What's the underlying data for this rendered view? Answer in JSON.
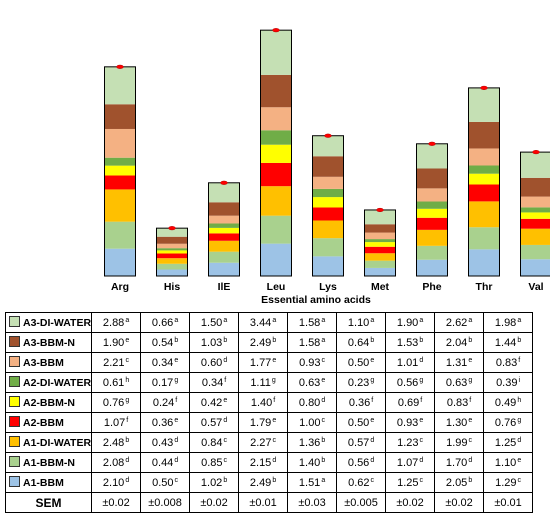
{
  "chart_data": {
    "type": "stacked-bar",
    "categories": [
      "Arg",
      "His",
      "IlE",
      "Leu",
      "Lys",
      "Met",
      "Phe",
      "Thr",
      "Val"
    ],
    "xlabel": "Essential amino acids",
    "series": [
      {
        "name": "A1-BBM",
        "color": "#9dc3e6",
        "values": [
          2.1,
          0.5,
          1.02,
          2.49,
          1.51,
          0.62,
          1.25,
          2.05,
          1.29
        ],
        "letters": [
          "d",
          "c",
          "b",
          "b",
          "a",
          "c",
          "c",
          "b",
          "c"
        ]
      },
      {
        "name": "A1-BBM-N",
        "color": "#a9d18e",
        "values": [
          2.08,
          0.44,
          0.85,
          2.15,
          1.4,
          0.56,
          1.07,
          1.7,
          1.1
        ],
        "letters": [
          "d",
          "d",
          "c",
          "d",
          "b",
          "d",
          "d",
          "d",
          "e"
        ]
      },
      {
        "name": "A1-DI-WATER",
        "color": "#ffc000",
        "values": [
          2.48,
          0.43,
          0.84,
          2.27,
          1.36,
          0.57,
          1.23,
          1.99,
          1.25
        ],
        "letters": [
          "b",
          "d",
          "c",
          "c",
          "b",
          "d",
          "c",
          "c",
          "d"
        ]
      },
      {
        "name": "A2-BBM",
        "color": "#ff0000",
        "values": [
          1.07,
          0.36,
          0.57,
          1.79,
          1.0,
          0.5,
          0.93,
          1.3,
          0.76
        ],
        "letters": [
          "f",
          "e",
          "d",
          "e",
          "c",
          "e",
          "e",
          "e",
          "g"
        ]
      },
      {
        "name": "A2-BBM-N",
        "color": "#ffff00",
        "values": [
          0.76,
          0.24,
          0.42,
          1.4,
          0.8,
          0.36,
          0.69,
          0.83,
          0.49
        ],
        "letters": [
          "g",
          "f",
          "e",
          "f",
          "d",
          "f",
          "f",
          "f",
          "h"
        ]
      },
      {
        "name": "A2-DI-WATER",
        "color": "#70ad47",
        "values": [
          0.61,
          0.17,
          0.34,
          1.11,
          0.63,
          0.23,
          0.56,
          0.63,
          0.39
        ],
        "letters": [
          "h",
          "g",
          "f",
          "g",
          "e",
          "g",
          "g",
          "g",
          "i"
        ]
      },
      {
        "name": "A3-BBM",
        "color": "#f4b183",
        "values": [
          2.21,
          0.34,
          0.6,
          1.77,
          0.93,
          0.5,
          1.01,
          1.31,
          0.83
        ],
        "letters": [
          "c",
          "e",
          "d",
          "e",
          "c",
          "e",
          "d",
          "e",
          "f"
        ]
      },
      {
        "name": "A3-BBM-N",
        "color": "#a0522d",
        "values": [
          1.9,
          0.54,
          1.03,
          2.49,
          1.58,
          0.64,
          1.53,
          2.04,
          1.44
        ],
        "letters": [
          "e",
          "b",
          "b",
          "b",
          "a",
          "b",
          "b",
          "b",
          "b"
        ]
      },
      {
        "name": "A3-DI-WATER",
        "color": "#c5e0b4",
        "values": [
          2.88,
          0.66,
          1.5,
          3.44,
          1.58,
          1.1,
          1.9,
          2.62,
          1.98
        ],
        "letters": [
          "a",
          "a",
          "a",
          "a",
          "a",
          "a",
          "a",
          "a",
          "a"
        ]
      }
    ],
    "table_order": [
      "A3-DI-WATER",
      "A3-BBM-N",
      "A3-BBM",
      "A2-DI-WATER",
      "A2-BBM-N",
      "A2-BBM",
      "A1-DI-WATER",
      "A1-BBM-N",
      "A1-BBM"
    ],
    "sem": {
      "label": "SEM",
      "values": [
        "±0.02",
        "±0.008",
        "±0.02",
        "±0.01",
        "±0.03",
        "±0.005",
        "±0.02",
        "±0.02",
        "±0.01"
      ]
    },
    "ylim": [
      0,
      20
    ],
    "grid": false,
    "legend": "table-left"
  }
}
